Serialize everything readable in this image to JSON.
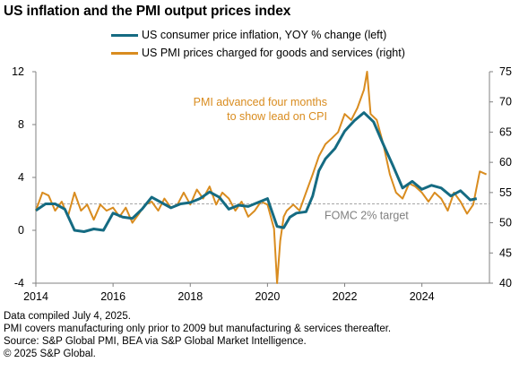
{
  "title": "US inflation and the PMI output prices index",
  "colors": {
    "cpi": "#156b82",
    "pmi": "#d98c1f",
    "target": "#a6a6a6",
    "axis": "#808080"
  },
  "footer": {
    "line1": "Data compiled July 4, 2025.",
    "line2": "PMI covers manufacturing only prior to 2009 but manufacturing & services thereafter.",
    "line3": "Source: S&P Global PMI, BEA via S&P Global Market Intelligence.",
    "line4": "© 2025 S&P Global."
  },
  "chart_data": {
    "type": "line",
    "xlim": [
      2014,
      2025.75
    ],
    "x_ticks": [
      "2014",
      "2016",
      "2018",
      "2020",
      "2022",
      "2024"
    ],
    "left_axis": {
      "ticks": [
        "12",
        "8",
        "4",
        "0",
        "-4"
      ],
      "ylim": [
        -4,
        12
      ]
    },
    "right_axis": {
      "ticks": [
        "75",
        "70",
        "65",
        "60",
        "55",
        "50",
        "45",
        "40"
      ],
      "ylim": [
        40,
        75
      ]
    },
    "target_line": {
      "value": 2,
      "label": "FOMC  2% target"
    },
    "annotation": {
      "line1": "PMI advanced four months",
      "line2": "to show lead on CPI"
    },
    "series": [
      {
        "name": "US consumer price inflation, YOY % change (left)",
        "axis": "left",
        "x": [
          2014.0,
          2014.25,
          2014.5,
          2014.75,
          2015.0,
          2015.25,
          2015.5,
          2015.75,
          2016.0,
          2016.25,
          2016.5,
          2016.75,
          2017.0,
          2017.25,
          2017.5,
          2017.75,
          2018.0,
          2018.25,
          2018.5,
          2018.75,
          2019.0,
          2019.25,
          2019.5,
          2019.75,
          2020.0,
          2020.25,
          2020.42,
          2020.58,
          2020.75,
          2021.0,
          2021.17,
          2021.33,
          2021.5,
          2021.75,
          2022.0,
          2022.25,
          2022.5,
          2022.75,
          2023.0,
          2023.25,
          2023.5,
          2023.75,
          2024.0,
          2024.25,
          2024.5,
          2024.75,
          2025.0,
          2025.25,
          2025.42
        ],
        "y": [
          1.5,
          2.0,
          2.0,
          1.6,
          0.0,
          -0.1,
          0.1,
          0.0,
          1.3,
          1.0,
          0.9,
          1.6,
          2.5,
          2.1,
          1.7,
          2.0,
          2.1,
          2.4,
          2.9,
          2.5,
          1.6,
          1.9,
          1.8,
          2.1,
          2.4,
          0.3,
          0.2,
          1.0,
          1.3,
          1.4,
          2.6,
          4.5,
          5.4,
          6.2,
          7.5,
          8.3,
          8.9,
          8.2,
          6.5,
          4.9,
          3.2,
          3.7,
          3.1,
          3.4,
          3.2,
          2.6,
          3.0,
          2.3,
          2.4
        ]
      },
      {
        "name": "US PMI prices charged for goods and services (right)",
        "axis": "right",
        "x": [
          2014.0,
          2014.17,
          2014.33,
          2014.5,
          2014.67,
          2014.83,
          2015.0,
          2015.17,
          2015.33,
          2015.5,
          2015.67,
          2015.83,
          2016.0,
          2016.17,
          2016.33,
          2016.5,
          2016.67,
          2016.83,
          2017.0,
          2017.17,
          2017.33,
          2017.5,
          2017.67,
          2017.83,
          2018.0,
          2018.17,
          2018.33,
          2018.5,
          2018.67,
          2018.83,
          2019.0,
          2019.17,
          2019.33,
          2019.5,
          2019.67,
          2019.83,
          2020.0,
          2020.17,
          2020.25,
          2020.33,
          2020.42,
          2020.5,
          2020.67,
          2020.83,
          2021.0,
          2021.17,
          2021.33,
          2021.5,
          2021.67,
          2021.83,
          2022.0,
          2022.17,
          2022.33,
          2022.5,
          2022.58,
          2022.67,
          2022.83,
          2023.0,
          2023.17,
          2023.33,
          2023.5,
          2023.67,
          2023.83,
          2024.0,
          2024.17,
          2024.33,
          2024.5,
          2024.67,
          2024.83,
          2025.0,
          2025.17,
          2025.33,
          2025.5,
          2025.67
        ],
        "y": [
          52,
          55,
          54.5,
          52,
          53.5,
          51,
          55,
          52,
          53,
          50.5,
          53,
          52,
          52.5,
          51,
          52.5,
          50,
          51.5,
          53,
          53.5,
          52,
          54,
          52.5,
          53,
          55,
          53,
          55.5,
          54,
          56,
          53,
          55,
          54,
          52,
          53.5,
          51,
          52,
          53.5,
          53,
          49,
          40,
          47,
          51,
          52,
          53,
          52,
          55,
          58,
          61,
          63,
          64,
          65,
          68,
          67,
          69,
          72,
          75,
          68,
          67,
          63,
          58,
          55,
          54,
          56.5,
          56,
          55,
          53.5,
          55,
          54,
          52,
          55,
          53.5,
          51.5,
          53,
          58.5,
          58
        ]
      }
    ]
  }
}
